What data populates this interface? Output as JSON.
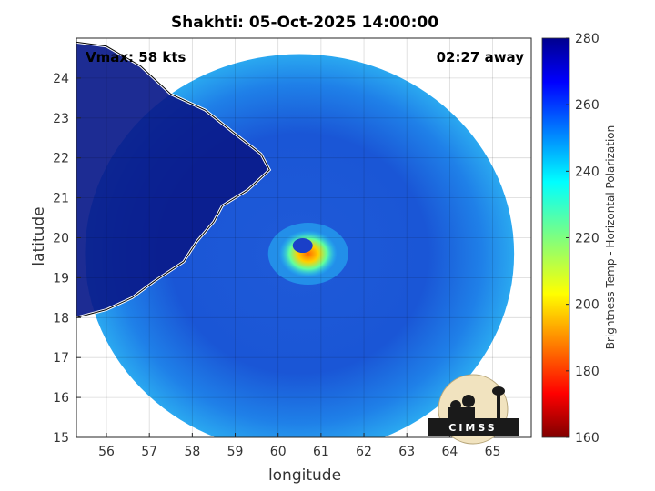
{
  "chart_data": {
    "type": "heatmap",
    "title": "Shakhti: 05-Oct-2025 14:00:00",
    "xlabel": "longitude",
    "ylabel": "latitude",
    "xlim": [
      55.3,
      65.9
    ],
    "ylim": [
      15,
      25
    ],
    "xticks": [
      56,
      57,
      58,
      59,
      60,
      61,
      62,
      63,
      64,
      65
    ],
    "yticks": [
      15,
      16,
      17,
      18,
      19,
      20,
      21,
      22,
      23,
      24
    ],
    "grid": true,
    "annotations": {
      "vmax": "Vmax: 58 kts",
      "time_away": "02:27 away"
    },
    "colorbar": {
      "label": "Brightness Temp - Horizontal Polarization",
      "range": [
        160,
        280
      ],
      "ticks": [
        160,
        180,
        200,
        220,
        240,
        260,
        280
      ],
      "colormap": "jet"
    },
    "swath": {
      "center_lon": 60.5,
      "center_lat": 19.6,
      "radius_deg": 5.0
    },
    "storm_center": {
      "lon": 60.7,
      "lat": 19.6
    }
  },
  "logo": {
    "text": "CIMSS"
  }
}
